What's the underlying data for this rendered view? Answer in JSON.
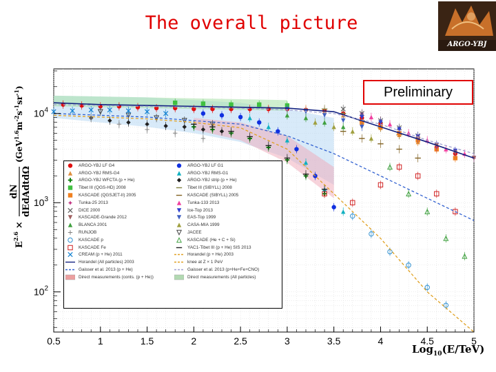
{
  "header": {
    "title": "The overall picture",
    "logo_text": "ARGO-YBJ",
    "badge": "Preliminary"
  },
  "axes": {
    "ylabel_prefix": "E",
    "ylabel_exp": "2.6",
    "ylabel_times": "×",
    "ylabel_frac_num": "dN",
    "ylabel_frac_den": "dEdAdtdΩ",
    "ylabel_units": "(GeV",
    "ylabel_units_exp": "1.6",
    "ylabel_units_rest": "m",
    "ylabel_units_rest_exp": "-2",
    "ylabel_units_s": "s",
    "ylabel_units_s_exp": "-1",
    "ylabel_units_sr": "sr",
    "ylabel_units_sr_exp": "-1",
    "ylabel_units_close": ")",
    "xlabel_prefix": "Log",
    "xlabel_sub": "10",
    "xlabel_suffix": "(E/TeV)"
  },
  "chart_data": {
    "type": "scatter",
    "xlim": [
      0.5,
      5
    ],
    "ylim_log10": [
      1.55,
      4.5
    ],
    "yscale": "log",
    "x_ticks": [
      "0.5",
      "1",
      "1.5",
      "2",
      "2.5",
      "3",
      "3.5",
      "4",
      "4.5",
      "5"
    ],
    "y_ticks": [
      {
        "label": "10",
        "exp": "4",
        "value_log10": 4.0
      },
      {
        "label": "10",
        "exp": "3",
        "value_log10": 3.0
      },
      {
        "label": "10",
        "exp": "2",
        "value_log10": 2.0
      }
    ],
    "grid": true,
    "legend_position": "lower-left",
    "series": [
      {
        "name": "ARGO-YBJ LF G4",
        "color": "#e01010",
        "marker": "circle",
        "x": [
          0.6,
          0.8,
          1.0,
          1.2,
          1.4,
          1.6,
          1.8,
          2.0,
          2.2,
          2.4,
          2.6,
          2.8,
          3.0,
          3.2,
          3.4,
          3.6,
          3.8,
          4.0,
          4.2,
          4.4,
          4.6,
          4.8
        ],
        "y_log10": [
          4.1,
          4.09,
          4.08,
          4.08,
          4.07,
          4.06,
          4.06,
          4.05,
          4.05,
          4.05,
          4.05,
          4.05,
          4.05,
          4.04,
          4.03,
          4.0,
          3.95,
          3.88,
          3.78,
          3.7,
          3.62,
          3.55
        ]
      },
      {
        "name": "ARGO-YBJ LF G1",
        "color": "#1030e0",
        "marker": "circle",
        "x": [
          2.1,
          2.3,
          2.5,
          2.7,
          2.9,
          3.1,
          3.3,
          3.5
        ],
        "y_log10": [
          4.0,
          3.98,
          3.96,
          3.9,
          3.8,
          3.6,
          3.3,
          2.95
        ]
      },
      {
        "name": "ARGO-YBJ RMS-G4",
        "color": "#e09040",
        "marker": "triangle-up",
        "x": [
          3.2,
          3.4,
          3.6,
          3.8,
          4.0,
          4.2,
          4.4,
          4.6
        ],
        "y_log10": [
          4.05,
          4.02,
          3.98,
          3.92,
          3.84,
          3.76,
          3.68,
          3.6
        ]
      },
      {
        "name": "ARGO-YBJ RMS-G1",
        "color": "#10b0c0",
        "marker": "triangle-up",
        "x": [
          2.6,
          2.8,
          3.0,
          3.2,
          3.4,
          3.6
        ],
        "y_log10": [
          3.95,
          3.85,
          3.7,
          3.45,
          3.15,
          2.9
        ]
      },
      {
        "name": "ARGO-YBJ WFCTA (p + He)",
        "color": "#108010",
        "marker": "cross",
        "x": [
          2.0,
          2.2,
          2.4,
          2.6,
          2.8,
          3.0,
          3.2,
          3.4
        ],
        "y_log10": [
          3.85,
          3.82,
          3.78,
          3.72,
          3.62,
          3.48,
          3.3,
          3.1
        ]
      },
      {
        "name": "ARGO-YBJ strip (p + He)",
        "color": "#202020",
        "marker": "diamond",
        "x": [
          0.9,
          1.1,
          1.3,
          1.5,
          1.7,
          1.9,
          2.1,
          2.3
        ],
        "y_log10": [
          3.95,
          3.92,
          3.9,
          3.88,
          3.86,
          3.85,
          3.82,
          3.8
        ]
      },
      {
        "name": "Tibet III (QGS-HD) 2008",
        "color": "#40c040",
        "marker": "square",
        "x": [
          1.8,
          2.1,
          2.4,
          2.7,
          3.0
        ],
        "y_log10": [
          4.12,
          4.11,
          4.1,
          4.1,
          4.09
        ]
      },
      {
        "name": "Tibet III (SIBYLL) 2008",
        "color": "#808040",
        "marker": "dash",
        "x": [
          3.4,
          3.6,
          3.8,
          4.0,
          4.2
        ],
        "y_log10": [
          4.05,
          4.0,
          3.92,
          3.84,
          3.76
        ]
      },
      {
        "name": "KASCADE (QGSJET-II) 2005",
        "color": "#f08020",
        "marker": "square",
        "x": [
          3.8,
          4.0,
          4.2,
          4.4,
          4.6,
          4.8
        ],
        "y_log10": [
          3.9,
          3.85,
          3.78,
          3.7,
          3.6,
          3.5
        ]
      },
      {
        "name": "KASCADE (SIBYLL) 2005",
        "color": "#806020",
        "marker": "dash",
        "x": [
          3.6,
          3.8,
          4.0,
          4.2,
          4.4
        ],
        "y_log10": [
          3.8,
          3.72,
          3.66,
          3.6,
          3.5
        ]
      },
      {
        "name": "Tunka-25 2013",
        "color": "#c03080",
        "marker": "star",
        "x": [
          3.8,
          4.0,
          4.2,
          4.4,
          4.6,
          4.8,
          5.0
        ],
        "y_log10": [
          4.0,
          3.92,
          3.82,
          3.72,
          3.62,
          3.56,
          3.5
        ]
      },
      {
        "name": "Tunka-133 2013",
        "color": "#f040a0",
        "marker": "triangle-up",
        "x": [
          3.9,
          4.1,
          4.3,
          4.5,
          4.7,
          4.9
        ],
        "y_log10": [
          3.96,
          3.88,
          3.78,
          3.7,
          3.6,
          3.55
        ]
      },
      {
        "name": "DICE 2000",
        "color": "#606060",
        "marker": "x",
        "x": [
          3.6,
          3.8,
          4.0,
          4.2,
          4.4
        ],
        "y_log10": [
          4.05,
          4.0,
          3.92,
          3.84,
          3.75
        ]
      },
      {
        "name": "Ice-Top 2013",
        "color": "#3040d0",
        "marker": "triangle-down",
        "x": [
          3.8,
          4.0,
          4.2,
          4.4,
          4.6,
          4.8,
          5.0
        ],
        "y_log10": [
          3.96,
          3.9,
          3.82,
          3.74,
          3.65,
          3.58,
          3.5
        ]
      },
      {
        "name": "KASCADE-Grande 2012",
        "color": "#a06060",
        "marker": "triangle-down",
        "x": [
          4.4,
          4.6,
          4.8,
          5.0
        ],
        "y_log10": [
          3.72,
          3.64,
          3.56,
          3.5
        ]
      },
      {
        "name": "EAS-Top 1999",
        "color": "#4060c0",
        "marker": "triangle-down",
        "x": [
          3.0,
          3.2,
          3.4,
          3.6,
          3.8
        ],
        "y_log10": [
          4.05,
          4.02,
          3.98,
          3.92,
          3.85
        ]
      },
      {
        "name": "BLANCA 2001",
        "color": "#40a040",
        "marker": "triangle-up",
        "x": [
          3.0,
          3.2,
          3.4,
          3.6
        ],
        "y_log10": [
          3.98,
          3.95,
          3.9,
          3.85
        ]
      },
      {
        "name": "CASA-MIA 1999",
        "color": "#a0a040",
        "marker": "triangle-up",
        "x": [
          3.3,
          3.5,
          3.7,
          3.9
        ],
        "y_log10": [
          3.9,
          3.85,
          3.8,
          3.72
        ]
      },
      {
        "name": "RUNJOB",
        "color": "#808080",
        "marker": "open-cross",
        "x": [
          0.9,
          1.2,
          1.5,
          1.8,
          2.1
        ],
        "y_log10": [
          3.95,
          3.88,
          3.82,
          3.78,
          3.72
        ]
      },
      {
        "name": "JACEE",
        "color": "#404040",
        "marker": "open-triangle-down",
        "x": [
          1.0,
          1.3,
          1.6,
          1.9,
          2.2
        ],
        "y_log10": [
          4.02,
          3.98,
          3.95,
          3.92,
          3.88
        ]
      },
      {
        "name": "KASCADE p",
        "color": "#3090d0",
        "marker": "open-circle",
        "x": [
          3.7,
          3.9,
          4.1,
          4.3,
          4.5,
          4.7
        ],
        "y_log10": [
          2.85,
          2.65,
          2.45,
          2.3,
          2.05,
          1.85
        ]
      },
      {
        "name": "KASCADE (He + C + Si)",
        "color": "#40a040",
        "marker": "open-triangle-up",
        "x": [
          4.1,
          4.3,
          4.5,
          4.7,
          4.9
        ],
        "y_log10": [
          3.4,
          3.1,
          2.9,
          2.6,
          2.4
        ]
      },
      {
        "name": "KASCADE Fe",
        "color": "#d02020",
        "marker": "open-square",
        "x": [
          3.4,
          3.7,
          4.0,
          4.2,
          4.4,
          4.6,
          4.8
        ],
        "y_log10": [
          3.1,
          3.0,
          3.2,
          3.4,
          3.3,
          3.1,
          2.9
        ]
      },
      {
        "name": "YAC1-Tibet III (p + He) SIS 2013",
        "color": "#202020",
        "marker": "dash",
        "x": [
          2.0,
          2.2,
          2.4,
          2.6,
          2.8,
          3.0,
          3.2,
          3.4
        ],
        "y_log10": [
          3.88,
          3.85,
          3.8,
          3.74,
          3.64,
          3.5,
          3.32,
          3.15
        ]
      },
      {
        "name": "CREAM (p + He) 2011",
        "color": "#1080d0",
        "marker": "x",
        "x": [
          0.5,
          0.7,
          0.9,
          1.1,
          1.3,
          1.5,
          1.7
        ],
        "y_log10": [
          4.02,
          4.03,
          4.04,
          4.04,
          4.03,
          4.02,
          4.0
        ]
      },
      {
        "name": "Horandel (p + He) 2003",
        "color": "#e0a020",
        "marker": "line-dashed",
        "x": [
          0.5,
          1.0,
          1.5,
          2.0,
          2.5,
          3.0,
          3.5,
          4.0,
          4.5,
          5.0
        ],
        "y_log10": [
          3.98,
          3.96,
          3.94,
          3.9,
          3.84,
          3.6,
          3.1,
          2.6,
          2.0,
          1.55
        ]
      },
      {
        "name": "Horandel (All particles) 2003",
        "color": "#102080",
        "marker": "line-solid",
        "x": [
          0.5,
          1.0,
          1.5,
          2.0,
          2.5,
          3.0,
          3.5,
          4.0,
          4.5,
          5.0
        ],
        "y_log10": [
          4.12,
          4.1,
          4.09,
          4.08,
          4.07,
          4.06,
          4.02,
          3.85,
          3.68,
          3.5
        ]
      },
      {
        "name": "knee at Z × 1 PeV",
        "color": "#e0a020",
        "marker": "line-dashed",
        "x": [],
        "y_log10": []
      },
      {
        "name": "Gaisser et al. 2013 (p + He)",
        "color": "#3060d0",
        "marker": "line-dashed",
        "x": [
          0.5,
          1.5,
          2.5,
          3.0,
          3.5,
          4.0,
          4.5,
          5.0
        ],
        "y_log10": [
          4.0,
          3.96,
          3.88,
          3.75,
          3.55,
          3.3,
          3.05,
          2.8
        ]
      },
      {
        "name": "Gaisser et al. 2013 (p+He+Fe+CNO)",
        "color": "#a0a0d0",
        "marker": "line-dashed",
        "x": [
          0.5,
          1.5,
          2.5,
          3.0,
          3.5,
          4.0,
          4.5,
          5.0
        ],
        "y_log10": [
          4.1,
          4.08,
          4.06,
          4.04,
          4.0,
          3.88,
          3.7,
          3.55
        ]
      },
      {
        "name": "Direct measurements (conts. (p + He))",
        "color": "#e06060",
        "marker": "band-hatched",
        "x": [],
        "y_log10": []
      },
      {
        "name": "Direct measurements (All particles)",
        "color": "#80c080",
        "marker": "band-dotted",
        "x": [],
        "y_log10": []
      }
    ],
    "legend_labels": [
      "ARGO-YBJ LF G4",
      "ARGO-YBJ LF G1",
      "ARGO-YBJ RMS-G4",
      "ARGO-YBJ RMS-G1",
      "ARGO-YBJ WFCTA (p + He)",
      "ARGO-YBJ strip (p + He)",
      "Tibet III (QGS-HD) 2008",
      "Tibet III (SIBYLL) 2008",
      "KASCADE (QGSJET-II) 2005",
      "KASCADE (SIBYLL) 2005",
      "Tunka-25 2013",
      "Tunka-133 2013",
      "DICE 2000",
      "Ice-Top 2013",
      "KASCADE-Grande 2012",
      "EAS-Top 1999",
      "BLANCA 2001",
      "CASA-MIA 1999",
      "RUNJOB",
      "JACEE",
      "KASCADE p",
      "KASCADE (He + C + Si)",
      "KASCADE Fe",
      "YAC1-Tibet III (p + He) SIS 2013",
      "CREAM (p + He) 2011",
      "Horandel (p + He) 2003",
      "Horandel (All particles) 2003",
      "knee at Z × 1 PeV",
      "Gaisser et al. 2013 (p + He)",
      "Gaisser et al. 2013 (p+He+Fe+CNO)",
      "Direct measurements (conts. (p + He))",
      "Direct measurements (All particles)"
    ]
  }
}
